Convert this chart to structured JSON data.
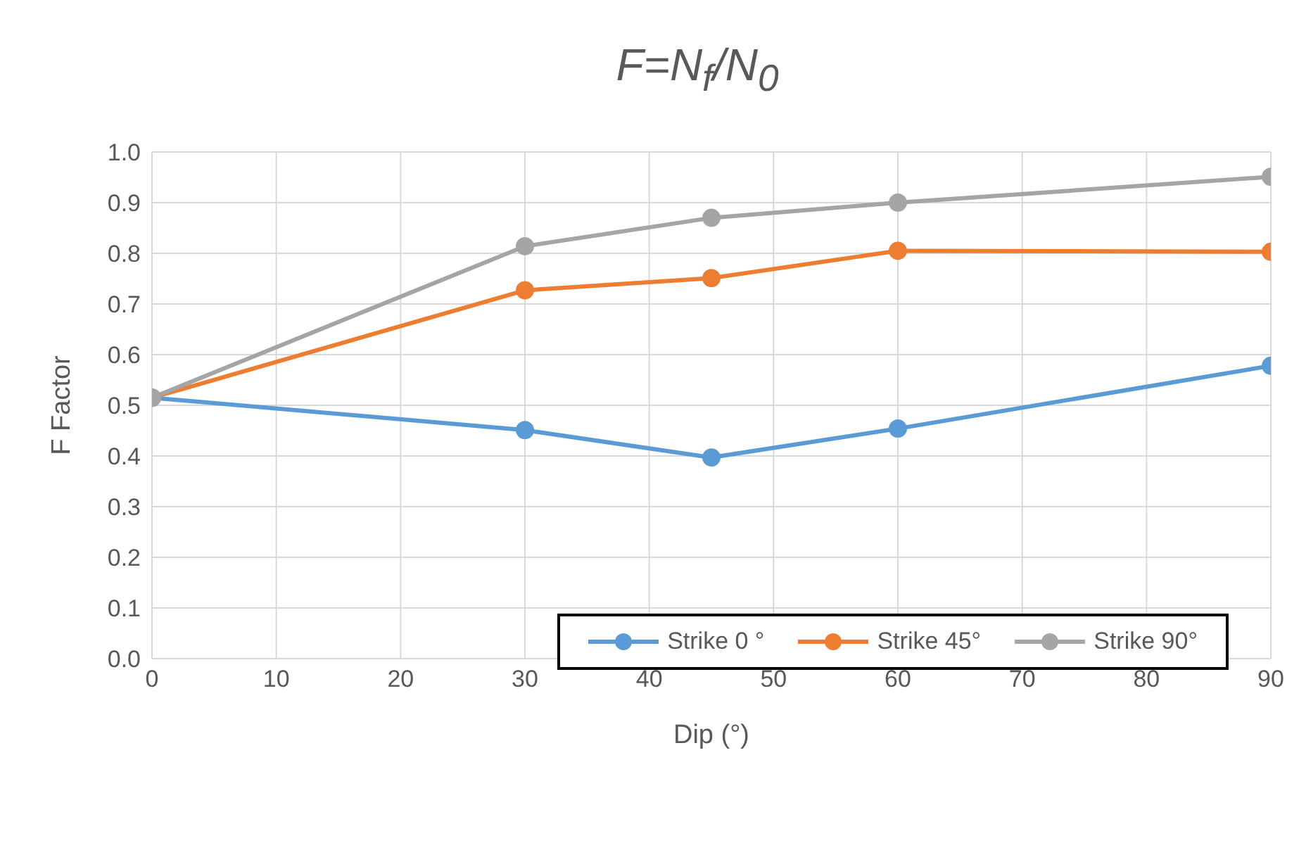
{
  "chart_data": {
    "type": "line",
    "title": "F=N$_{f}$/N$_{0}$",
    "xlabel": "Dip (°)",
    "ylabel": "F Factor",
    "x": [
      0,
      30,
      45,
      60,
      90
    ],
    "series": [
      {
        "name": "Strike 0 °",
        "color": "#5b9bd5",
        "values": [
          0.515,
          0.451,
          0.397,
          0.454,
          0.578
        ]
      },
      {
        "name": "Strike 45°",
        "color": "#ed7d31",
        "values": [
          0.515,
          0.727,
          0.751,
          0.805,
          0.803
        ]
      },
      {
        "name": "Strike 90°",
        "color": "#a5a5a5",
        "values": [
          0.515,
          0.814,
          0.87,
          0.9,
          0.951
        ]
      }
    ],
    "xlim": [
      0,
      90
    ],
    "xticks": [
      0,
      10,
      20,
      30,
      40,
      50,
      60,
      70,
      80,
      90
    ],
    "ylim": [
      0,
      1
    ],
    "yticks": [
      {
        "value": 0,
        "label": "0.0"
      },
      {
        "value": 0.1,
        "label": "0.1"
      },
      {
        "value": 0.2,
        "label": "0.2"
      },
      {
        "value": 0.3,
        "label": "0.3"
      },
      {
        "value": 0.4,
        "label": "0.4"
      },
      {
        "value": 0.5,
        "label": "0.5"
      },
      {
        "value": 0.6,
        "label": "0.6"
      },
      {
        "value": 0.7,
        "label": "0.7"
      },
      {
        "value": 0.8,
        "label": "0.8"
      },
      {
        "value": 0.9,
        "label": "0.9"
      },
      {
        "value": 1,
        "label": "1.0"
      }
    ],
    "grid": true,
    "legend": "bottom right",
    "marker": "circle",
    "line_style": "solid"
  }
}
